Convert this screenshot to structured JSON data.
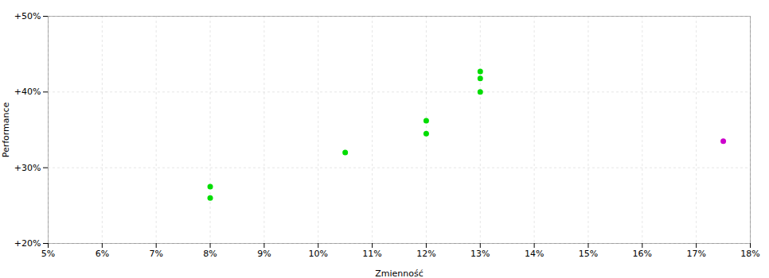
{
  "chart_data": {
    "type": "scatter",
    "xlabel": "Zmienność",
    "ylabel": "Performance",
    "xlim": [
      0.05,
      0.18
    ],
    "ylim": [
      0.2,
      0.5
    ],
    "xticks": [
      {
        "value": 0.05,
        "label": "5%"
      },
      {
        "value": 0.06,
        "label": "6%"
      },
      {
        "value": 0.07,
        "label": "7%"
      },
      {
        "value": 0.08,
        "label": "8%"
      },
      {
        "value": 0.09,
        "label": "9%"
      },
      {
        "value": 0.1,
        "label": "10%"
      },
      {
        "value": 0.11,
        "label": "11%"
      },
      {
        "value": 0.12,
        "label": "12%"
      },
      {
        "value": 0.13,
        "label": "13%"
      },
      {
        "value": 0.14,
        "label": "14%"
      },
      {
        "value": 0.15,
        "label": "15%"
      },
      {
        "value": 0.16,
        "label": "16%"
      },
      {
        "value": 0.17,
        "label": "17%"
      },
      {
        "value": 0.18,
        "label": "18%"
      }
    ],
    "yticks": [
      {
        "value": 0.2,
        "label": "+20%"
      },
      {
        "value": 0.3,
        "label": "+30%"
      },
      {
        "value": 0.4,
        "label": "+40%"
      },
      {
        "value": 0.5,
        "label": "+50%"
      }
    ],
    "grid": true,
    "series": [
      {
        "color": "#00dd00",
        "x": [
          0.08,
          0.08,
          0.105,
          0.12,
          0.12,
          0.13,
          0.13,
          0.13
        ],
        "values": [
          0.275,
          0.26,
          0.32,
          0.362,
          0.345,
          0.427,
          0.418,
          0.4
        ]
      },
      {
        "color": "#cc00cc",
        "x": [
          0.175
        ],
        "values": [
          0.335
        ]
      }
    ]
  }
}
